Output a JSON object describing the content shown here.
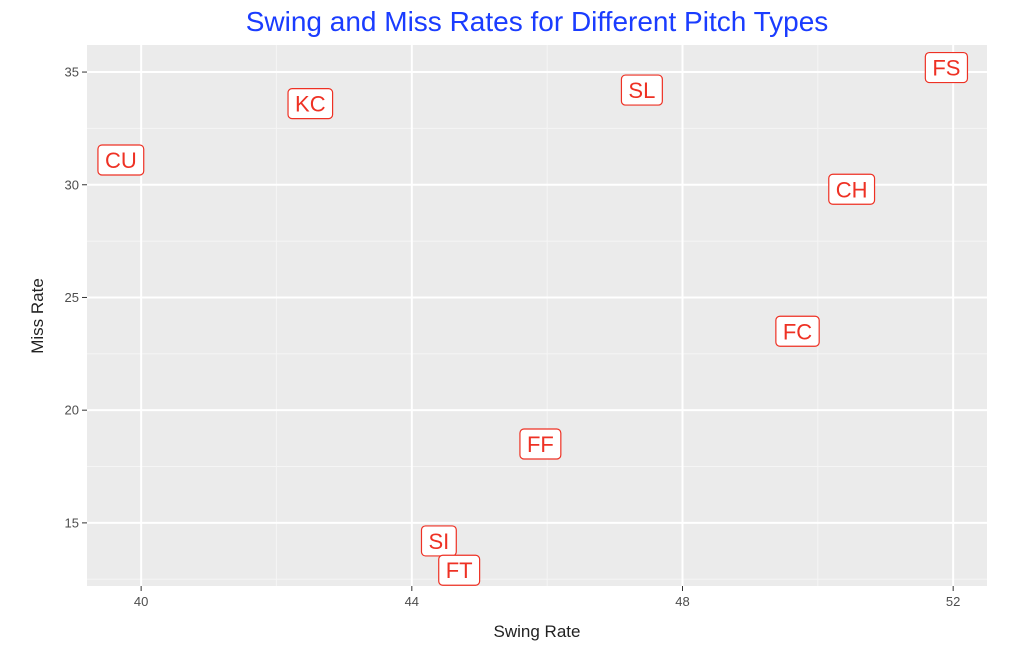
{
  "chart_data": {
    "type": "scatter",
    "title": "Swing and Miss Rates for Different Pitch Types",
    "xlabel": "Swing Rate",
    "ylabel": "Miss Rate",
    "xlim": [
      39.2,
      52.5
    ],
    "ylim": [
      12.2,
      36.2
    ],
    "x_ticks": [
      40,
      44,
      48,
      52
    ],
    "y_ticks": [
      15,
      20,
      25,
      30,
      35
    ],
    "grid": true,
    "points": [
      {
        "label": "CU",
        "x": 39.7,
        "y": 31.1
      },
      {
        "label": "KC",
        "x": 42.5,
        "y": 33.6
      },
      {
        "label": "SL",
        "x": 47.4,
        "y": 34.2
      },
      {
        "label": "FS",
        "x": 51.9,
        "y": 35.2
      },
      {
        "label": "CH",
        "x": 50.5,
        "y": 29.8
      },
      {
        "label": "FC",
        "x": 49.7,
        "y": 23.5
      },
      {
        "label": "FF",
        "x": 45.9,
        "y": 18.5
      },
      {
        "label": "SI",
        "x": 44.4,
        "y": 14.2
      },
      {
        "label": "FT",
        "x": 44.7,
        "y": 12.9
      }
    ]
  },
  "colors": {
    "title": "#1a3cff",
    "panel_background": "#ebebeb",
    "grid_major": "#ffffff",
    "grid_minor": "#f5f5f5",
    "label_text": "#ee3124",
    "label_border": "#ee3124",
    "label_fill": "#ffffff"
  }
}
